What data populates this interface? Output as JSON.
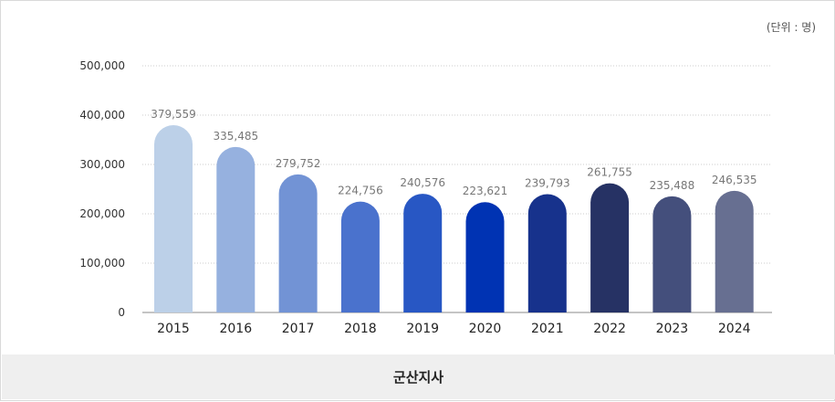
{
  "unit_label": "(단위 : 명)",
  "chart_data": {
    "type": "bar",
    "title": "",
    "xlabel": "",
    "ylabel": "",
    "unit": "(단위 : 명)",
    "categories": [
      "2015",
      "2016",
      "2017",
      "2018",
      "2019",
      "2020",
      "2021",
      "2022",
      "2023",
      "2024"
    ],
    "values": [
      379559,
      335485,
      279752,
      224756,
      240576,
      223621,
      239793,
      261755,
      235488,
      246535
    ],
    "value_labels": [
      "379,559",
      "335,485",
      "279,752",
      "224,756",
      "240,576",
      "223,621",
      "239,793",
      "261,755",
      "235,488",
      "246,535"
    ],
    "y_ticks": [
      0,
      100000,
      200000,
      300000,
      400000,
      500000
    ],
    "y_tick_labels": [
      "0",
      "100,000",
      "200,000",
      "300,000",
      "400,000",
      "500,000"
    ],
    "ylim": [
      0,
      500000
    ],
    "grid": true,
    "legend": "none",
    "bar_colors": [
      "#bcd0e8",
      "#96b1df",
      "#7293d5",
      "#4a72cd",
      "#2857c4",
      "#0033b3",
      "#17328c",
      "#263264",
      "#444f7c",
      "#676f91"
    ]
  },
  "footer": {
    "title": "군산지사"
  }
}
